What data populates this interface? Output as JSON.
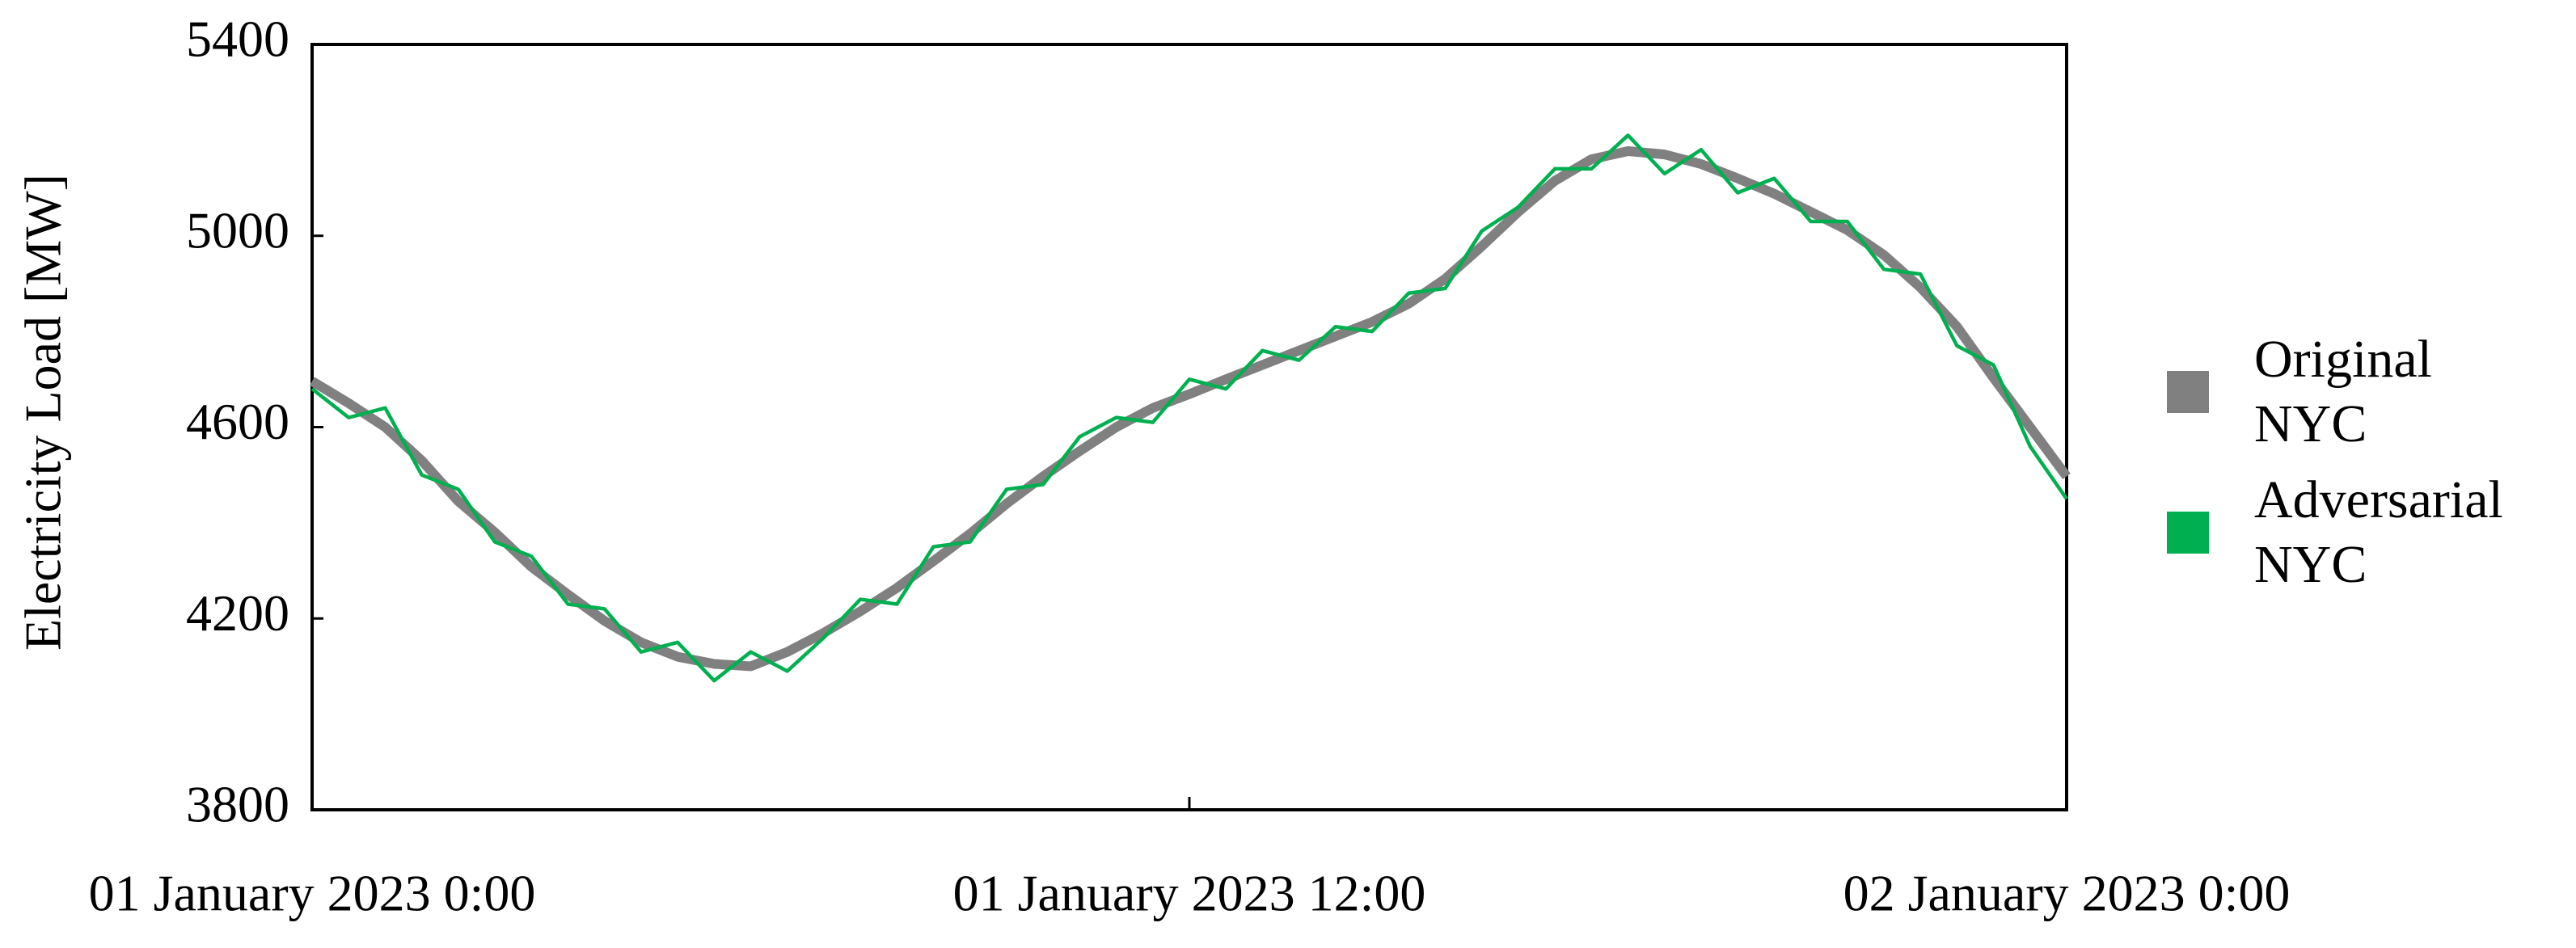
{
  "chart_data": {
    "type": "line",
    "y_label": "Electricity Load [MW]",
    "x": [
      "2023-01-01T00:00",
      "2023-01-01T00:30",
      "2023-01-01T01:00",
      "2023-01-01T01:30",
      "2023-01-01T02:00",
      "2023-01-01T02:30",
      "2023-01-01T03:00",
      "2023-01-01T03:30",
      "2023-01-01T04:00",
      "2023-01-01T04:30",
      "2023-01-01T05:00",
      "2023-01-01T05:30",
      "2023-01-01T06:00",
      "2023-01-01T06:30",
      "2023-01-01T07:00",
      "2023-01-01T07:30",
      "2023-01-01T08:00",
      "2023-01-01T08:30",
      "2023-01-01T09:00",
      "2023-01-01T09:30",
      "2023-01-01T10:00",
      "2023-01-01T10:30",
      "2023-01-01T11:00",
      "2023-01-01T11:30",
      "2023-01-01T12:00",
      "2023-01-01T12:30",
      "2023-01-01T13:00",
      "2023-01-01T13:30",
      "2023-01-01T14:00",
      "2023-01-01T14:30",
      "2023-01-01T15:00",
      "2023-01-01T15:30",
      "2023-01-01T16:00",
      "2023-01-01T16:30",
      "2023-01-01T17:00",
      "2023-01-01T17:30",
      "2023-01-01T18:00",
      "2023-01-01T18:30",
      "2023-01-01T19:00",
      "2023-01-01T19:30",
      "2023-01-01T20:00",
      "2023-01-01T20:30",
      "2023-01-01T21:00",
      "2023-01-01T21:30",
      "2023-01-01T22:00",
      "2023-01-01T22:30",
      "2023-01-01T23:00",
      "2023-01-01T23:30",
      "2023-01-02T00:00"
    ],
    "series": [
      {
        "name": "Original NYC",
        "color": "#808080",
        "values": [
          4696,
          4650,
          4600,
          4530,
          4445,
          4380,
          4308,
          4250,
          4195,
          4150,
          4120,
          4105,
          4100,
          4130,
          4170,
          4215,
          4264,
          4320,
          4377,
          4440,
          4497,
          4550,
          4600,
          4640,
          4669,
          4700,
          4730,
          4760,
          4790,
          4820,
          4858,
          4910,
          4978,
          5050,
          5115,
          5160,
          5177,
          5170,
          5150,
          5120,
          5088,
          5050,
          5012,
          4960,
          4892,
          4810,
          4703,
          4600,
          4497
        ]
      },
      {
        "name": "Adversarial NYC",
        "color": "#00b050",
        "values": [
          4680,
          4620,
          4640,
          4500,
          4470,
          4360,
          4330,
          4230,
          4220,
          4130,
          4150,
          4070,
          4130,
          4090,
          4160,
          4240,
          4230,
          4350,
          4360,
          4470,
          4480,
          4580,
          4620,
          4610,
          4700,
          4680,
          4760,
          4740,
          4810,
          4800,
          4880,
          4890,
          5010,
          5060,
          5140,
          5140,
          5210,
          5130,
          5180,
          5090,
          5120,
          5030,
          5030,
          4930,
          4920,
          4770,
          4730,
          4560,
          4450
        ]
      }
    ],
    "xlim": [
      "2023-01-01T00:00",
      "2023-01-02T00:00"
    ],
    "xticks": [
      {
        "value": "2023-01-01T00:00",
        "label": "01 January 2023 0:00"
      },
      {
        "value": "2023-01-01T12:00",
        "label": "01 January 2023 12:00"
      },
      {
        "value": "2023-01-02T00:00",
        "label": "02 January 2023 0:00"
      }
    ],
    "ylim": [
      3800,
      5400
    ],
    "yticks": [
      3800,
      4200,
      4600,
      5000,
      5400
    ],
    "grid": false,
    "legend": "right"
  }
}
